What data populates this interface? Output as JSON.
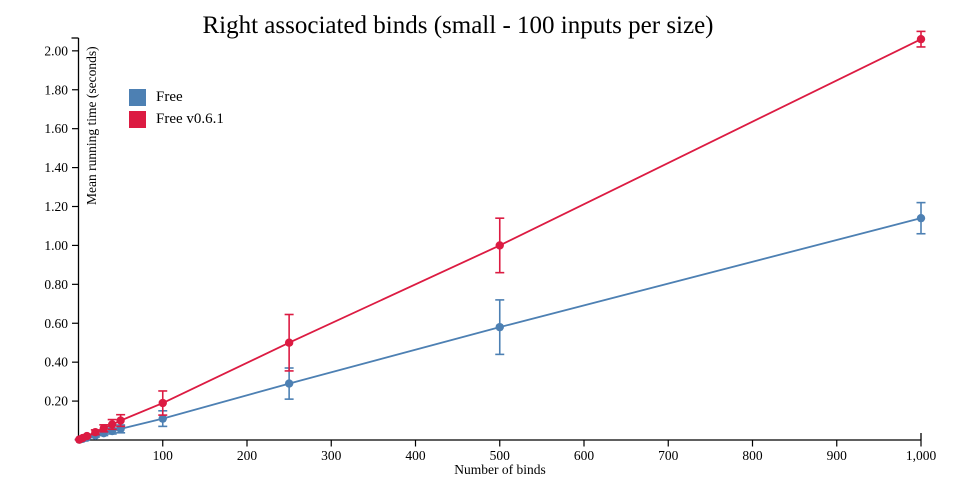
{
  "chart_data": {
    "type": "line",
    "title": "Right associated binds (small - 100 inputs per size)",
    "xlabel": "Number of binds",
    "ylabel": "Mean running time (seconds)",
    "x": [
      1,
      5,
      10,
      20,
      30,
      40,
      50,
      100,
      250,
      500,
      1000
    ],
    "series": [
      {
        "name": "Free",
        "color": "#4d80b3",
        "values": [
          0.002,
          0.006,
          0.012,
          0.023,
          0.035,
          0.046,
          0.057,
          0.11,
          0.29,
          0.58,
          1.14
        ],
        "error": [
          0.001,
          0.002,
          0.004,
          0.008,
          0.012,
          0.015,
          0.02,
          0.04,
          0.08,
          0.14,
          0.08
        ]
      },
      {
        "name": "Free v0.6.1",
        "color": "#dc1b42",
        "values": [
          0.002,
          0.01,
          0.02,
          0.04,
          0.06,
          0.08,
          0.1,
          0.19,
          0.5,
          1.0,
          2.06
        ],
        "error": [
          0.001,
          0.003,
          0.006,
          0.012,
          0.018,
          0.025,
          0.03,
          0.062,
          0.145,
          0.14,
          0.04
        ]
      }
    ],
    "xlim": [
      0,
      1000
    ],
    "ylim": [
      0,
      2.066
    ],
    "x_ticks": [
      100,
      200,
      300,
      400,
      500,
      600,
      700,
      800,
      900,
      1000
    ],
    "x_tick_labels": [
      "100",
      "200",
      "300",
      "400",
      "500",
      "600",
      "700",
      "800",
      "900",
      "1,000"
    ],
    "y_ticks": [
      0.2,
      0.4,
      0.6,
      0.8,
      1.0,
      1.2,
      1.4,
      1.6,
      1.8,
      2.0
    ],
    "y_tick_labels": [
      "0.20",
      "0.40",
      "0.60",
      "0.80",
      "1.00",
      "1.20",
      "1.40",
      "1.60",
      "1.80",
      "2.00"
    ],
    "grid": false,
    "legend_position": "upper-left-inside",
    "point_style": "circle-with-error-bars",
    "axis_color": "#000000",
    "background_color": "#ffffff"
  }
}
